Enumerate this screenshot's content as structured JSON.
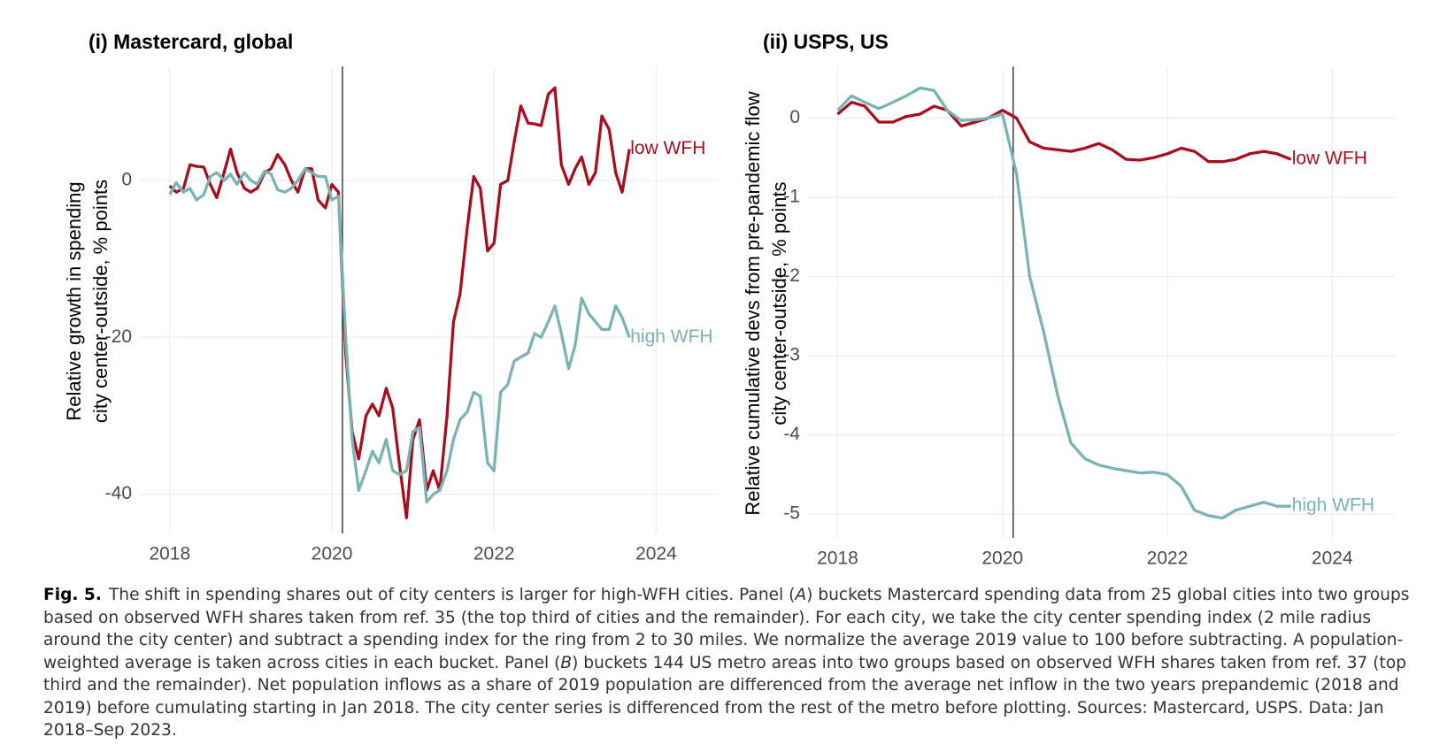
{
  "chart_data": [
    {
      "type": "line",
      "title": "(i) Mastercard, global",
      "ylabel": [
        "Relative growth in spending",
        "city center-outside, % points"
      ],
      "xlim": [
        2017.62,
        2024.77
      ],
      "xticks": [
        2018,
        2020,
        2022,
        2024
      ],
      "ylim": [
        -45,
        14.2
      ],
      "yticks": [
        -40,
        -20,
        0
      ],
      "grid": true,
      "vline": 2020.13,
      "x": [
        2018,
        2018.08,
        2018.17,
        2018.25,
        2018.33,
        2018.42,
        2018.5,
        2018.58,
        2018.67,
        2018.75,
        2018.83,
        2018.92,
        2019,
        2019.08,
        2019.17,
        2019.25,
        2019.33,
        2019.42,
        2019.5,
        2019.58,
        2019.67,
        2019.75,
        2019.83,
        2019.92,
        2020,
        2020.08,
        2020.17,
        2020.25,
        2020.33,
        2020.42,
        2020.5,
        2020.58,
        2020.67,
        2020.75,
        2020.83,
        2020.92,
        2021,
        2021.08,
        2021.17,
        2021.25,
        2021.33,
        2021.42,
        2021.5,
        2021.58,
        2021.67,
        2021.75,
        2021.83,
        2021.92,
        2022,
        2022.08,
        2022.17,
        2022.25,
        2022.33,
        2022.42,
        2022.5,
        2022.58,
        2022.67,
        2022.75,
        2022.83,
        2022.92,
        2023,
        2023.08,
        2023.17,
        2023.25,
        2023.33,
        2023.42,
        2023.5,
        2023.58,
        2023.67
      ],
      "series": [
        {
          "name": "low WFH",
          "color": "#a50f20",
          "values": [
            -0.7,
            -1.5,
            -1,
            2,
            1.8,
            1.7,
            -0.5,
            -2.2,
            1,
            4,
            1,
            -1,
            -1.5,
            -1,
            1,
            1.5,
            3.3,
            2,
            0,
            -1.5,
            1.5,
            1.5,
            -2.5,
            -3.5,
            -0.5,
            -1.5,
            -22,
            -32,
            -35.5,
            -30,
            -28.5,
            -30,
            -26.5,
            -29,
            -36,
            -43,
            -33,
            -30.5,
            -39.5,
            -37,
            -39.5,
            -30,
            -18,
            -14.5,
            -6,
            0.5,
            -1,
            -9,
            -8,
            -0.5,
            0,
            5,
            9.5,
            7.3,
            7.2,
            7,
            11,
            11.8,
            2,
            -0.5,
            1.5,
            3,
            -0.5,
            1,
            8.2,
            6.5,
            1,
            -1.5,
            4
          ]
        },
        {
          "name": "high WFH",
          "color": "#7ab3b3",
          "values": [
            -1.8,
            -0.3,
            -1.5,
            -1,
            -2.5,
            -1.8,
            0.5,
            1,
            0,
            0.8,
            -0.5,
            1,
            0,
            -0.5,
            1.2,
            0.8,
            -1.2,
            -1.5,
            -1,
            0,
            1.5,
            1,
            0.5,
            0.5,
            -2.5,
            -2,
            -20,
            -33,
            -39.5,
            -37,
            -34.5,
            -36,
            -33,
            -37,
            -37.5,
            -37,
            -32,
            -31.5,
            -41,
            -40,
            -39.5,
            -37,
            -33,
            -30.5,
            -29.5,
            -27,
            -27.5,
            -36,
            -37,
            -27,
            -26,
            -23,
            -22.5,
            -22,
            -19.5,
            -20,
            -18,
            -16,
            -19.5,
            -24,
            -21,
            -15,
            -17,
            -18,
            -19,
            -19,
            -16,
            -17.5,
            -20
          ]
        }
      ]
    },
    {
      "type": "line",
      "title": "(ii) USPS, US",
      "ylabel": [
        "Relative cumulative devs from pre-pandemic flow",
        "city center-outside, % points"
      ],
      "xlim": [
        2017.63,
        2024.77
      ],
      "xticks": [
        2018,
        2020,
        2022,
        2024
      ],
      "ylim": [
        -5.3,
        0.62
      ],
      "yticks": [
        -5,
        -4,
        -3,
        -2,
        -1,
        0
      ],
      "grid": true,
      "vline": 2020.13,
      "x": [
        2018,
        2018.17,
        2018.33,
        2018.5,
        2018.67,
        2018.83,
        2019,
        2019.17,
        2019.33,
        2019.5,
        2019.67,
        2019.83,
        2020,
        2020.17,
        2020.33,
        2020.5,
        2020.67,
        2020.83,
        2021,
        2021.17,
        2021.33,
        2021.5,
        2021.67,
        2021.83,
        2022,
        2022.17,
        2022.33,
        2022.5,
        2022.67,
        2022.83,
        2023,
        2023.17,
        2023.33,
        2023.5
      ],
      "series": [
        {
          "name": "low WFH",
          "color": "#a50f20",
          "values": [
            0.05,
            0.2,
            0.15,
            -0.05,
            -0.05,
            0.02,
            0.05,
            0.15,
            0.1,
            -0.1,
            -0.05,
            0,
            0.1,
            0,
            -0.3,
            -0.38,
            -0.4,
            -0.42,
            -0.38,
            -0.32,
            -0.4,
            -0.52,
            -0.53,
            -0.5,
            -0.45,
            -0.38,
            -0.42,
            -0.55,
            -0.55,
            -0.52,
            -0.45,
            -0.42,
            -0.45,
            -0.52
          ]
        },
        {
          "name": "high WFH",
          "color": "#7ab3b3",
          "values": [
            0.1,
            0.28,
            0.2,
            0.12,
            0.2,
            0.28,
            0.38,
            0.35,
            0.1,
            -0.03,
            -0.02,
            0,
            0.05,
            -0.7,
            -2,
            -2.7,
            -3.5,
            -4.1,
            -4.3,
            -4.38,
            -4.42,
            -4.45,
            -4.48,
            -4.47,
            -4.5,
            -4.65,
            -4.95,
            -5.02,
            -5.05,
            -4.95,
            -4.9,
            -4.85,
            -4.9,
            -4.9
          ]
        }
      ]
    }
  ],
  "caption": {
    "label": "Fig. 5.",
    "parts": [
      "The shift in spending shares out of city centers is larger for high-WFH cities. Panel (",
      "A",
      ") buckets Mastercard spending data from 25 global cities into two groups based on observed WFH shares taken from ref. 35 (the top third of cities and the remainder). For each city, we take the city center spending index (2 mile radius around the city center) and subtract a spending index for the ring from 2 to 30 miles. We normalize the average 2019 value to 100 before subtracting. A population-weighted average is taken across cities in each bucket. Panel (",
      "B",
      ") buckets 144 US metro areas into two groups based on observed WFH shares taken from ref. 37 (top third and the remainder). Net population inflows as a share of 2019 population are differenced from the average net inflow in the two years prepandemic (2018 and 2019) before cumulating starting in Jan 2018. The city center series is differenced from the rest of the metro before plotting. Sources: Mastercard, USPS. Data: Jan 2018–Sep 2023."
    ]
  }
}
